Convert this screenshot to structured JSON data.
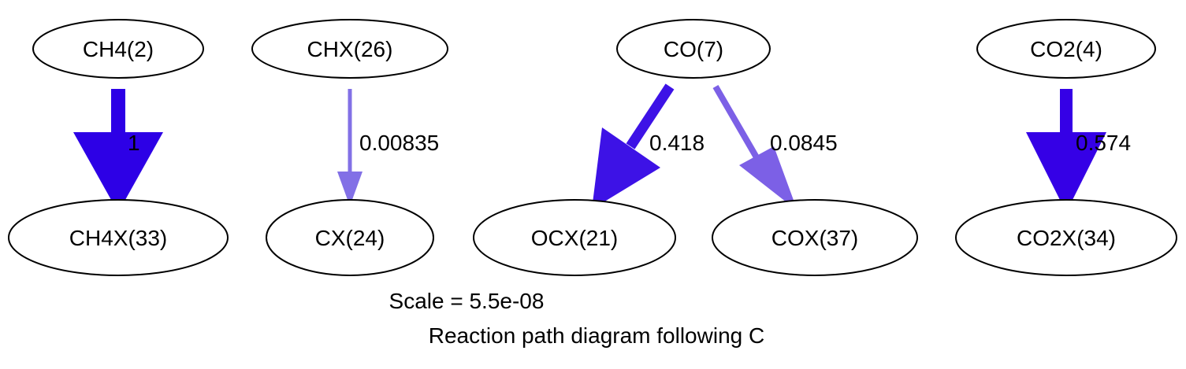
{
  "nodes": {
    "ch4": "CH4(2)",
    "ch4x": "CH4X(33)",
    "chx": "CHX(26)",
    "cx": "CX(24)",
    "co": "CO(7)",
    "ocx": "OCX(21)",
    "cox": "COX(37)",
    "co2": "CO2(4)",
    "co2x": "CO2X(34)"
  },
  "edges": {
    "ch4_ch4x": {
      "label": "1",
      "color": "#2d00e6"
    },
    "chx_cx": {
      "label": "0.00835",
      "color": "#8270e6"
    },
    "co_ocx": {
      "label": "0.418",
      "color": "#3d12e6"
    },
    "co_cox": {
      "label": "0.0845",
      "color": "#7c60e6"
    },
    "co2_co2x": {
      "label": "0.574",
      "color": "#3500e6"
    }
  },
  "caption": {
    "scale": "Scale = 5.5e-08",
    "title": "Reaction path diagram following C"
  }
}
